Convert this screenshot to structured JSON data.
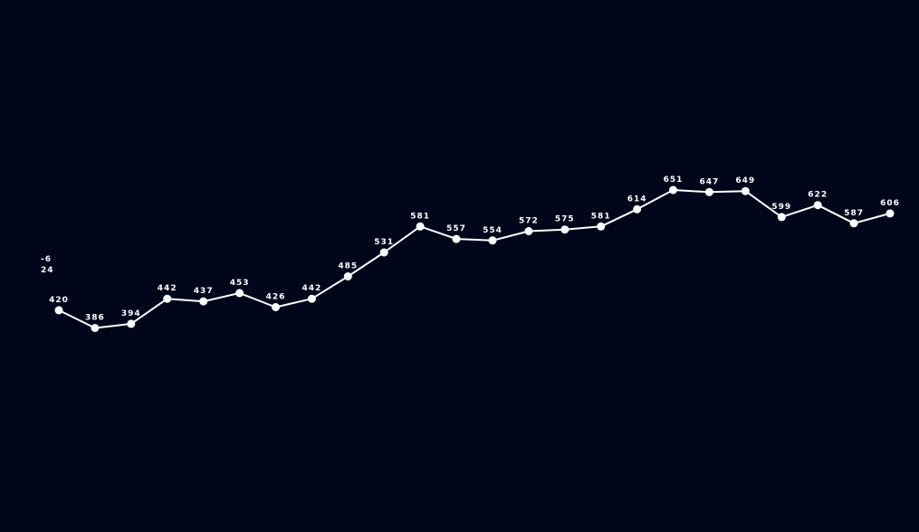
{
  "colors": {
    "background": "#00061a",
    "line": "#ffffff",
    "marker": "#ffffff",
    "label": "#ffffff"
  },
  "side_labels": [
    "-6",
    "24"
  ],
  "chart_data": {
    "type": "line",
    "title": "",
    "xlabel": "",
    "ylabel": "",
    "grid": false,
    "axes_visible": false,
    "ylim": [
      -6,
      1016
    ],
    "x": [
      1,
      2,
      3,
      4,
      5,
      6,
      7,
      8,
      9,
      10,
      11,
      12,
      13,
      14,
      15,
      16,
      17,
      18,
      19,
      20,
      21,
      22,
      23,
      24
    ],
    "values": [
      420,
      386,
      394,
      442,
      437,
      453,
      426,
      442,
      485,
      531,
      581,
      557,
      554,
      572,
      575,
      581,
      614,
      651,
      647,
      649,
      599,
      622,
      587,
      606
    ],
    "data_labels": [
      "420",
      "386",
      "394",
      "442",
      "437",
      "453",
      "426",
      "442",
      "485",
      "531",
      "581",
      "557",
      "554",
      "572",
      "575",
      "581",
      "614",
      "651",
      "647",
      "649",
      "599",
      "622",
      "587",
      "606"
    ]
  }
}
